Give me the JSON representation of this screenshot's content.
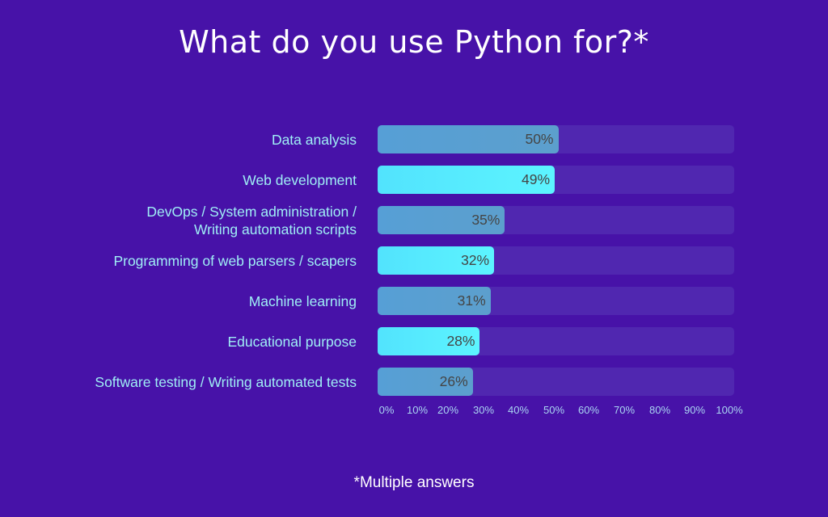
{
  "title": "What do you use Python for?*",
  "footnote": "*Multiple answers",
  "colors": {
    "background": "#4712a8",
    "track": "#5027b0",
    "bar_dim": "#569fd6",
    "bar_bright": "#55ecff",
    "label": "#9feef5",
    "value_text": "#454545"
  },
  "rows": [
    {
      "label": "Data analysis",
      "value": 50,
      "display": "50%",
      "style": "dim"
    },
    {
      "label": "Web development",
      "value": 49,
      "display": "49%",
      "style": "bright"
    },
    {
      "label": "DevOps / System administration /\nWriting automation scripts",
      "value": 35,
      "display": "35%",
      "style": "dim"
    },
    {
      "label": "Programming of web parsers / scapers",
      "value": 32,
      "display": "32%",
      "style": "bright"
    },
    {
      "label": "Machine learning",
      "value": 31,
      "display": "31%",
      "style": "dim"
    },
    {
      "label": "Educational purpose",
      "value": 28,
      "display": "28%",
      "style": "bright"
    },
    {
      "label": "Software testing / Writing automated tests",
      "value": 26,
      "display": "26%",
      "style": "dim"
    }
  ],
  "axis": {
    "ticks": [
      "0%",
      "10%",
      "20%",
      "30%",
      "40%",
      "50%",
      "60%",
      "70%",
      "80%",
      "90%",
      "100%"
    ]
  },
  "chart_data": {
    "type": "bar",
    "orientation": "horizontal",
    "title": "What do you use Python for?*",
    "categories": [
      "Data analysis",
      "Web development",
      "DevOps / System administration / Writing automation scripts",
      "Programming of web parsers / scapers",
      "Machine learning",
      "Educational purpose",
      "Software testing / Writing automated tests"
    ],
    "values": [
      50,
      49,
      35,
      32,
      31,
      28,
      26
    ],
    "unit": "%",
    "xlabel": "",
    "ylabel": "",
    "xlim": [
      0,
      100
    ],
    "xticks": [
      "0%",
      "10%",
      "20%",
      "30%",
      "40%",
      "50%",
      "60%",
      "70%",
      "80%",
      "90%",
      "100%"
    ],
    "grid": false,
    "legend": null,
    "annotations": [
      "*Multiple answers"
    ]
  }
}
